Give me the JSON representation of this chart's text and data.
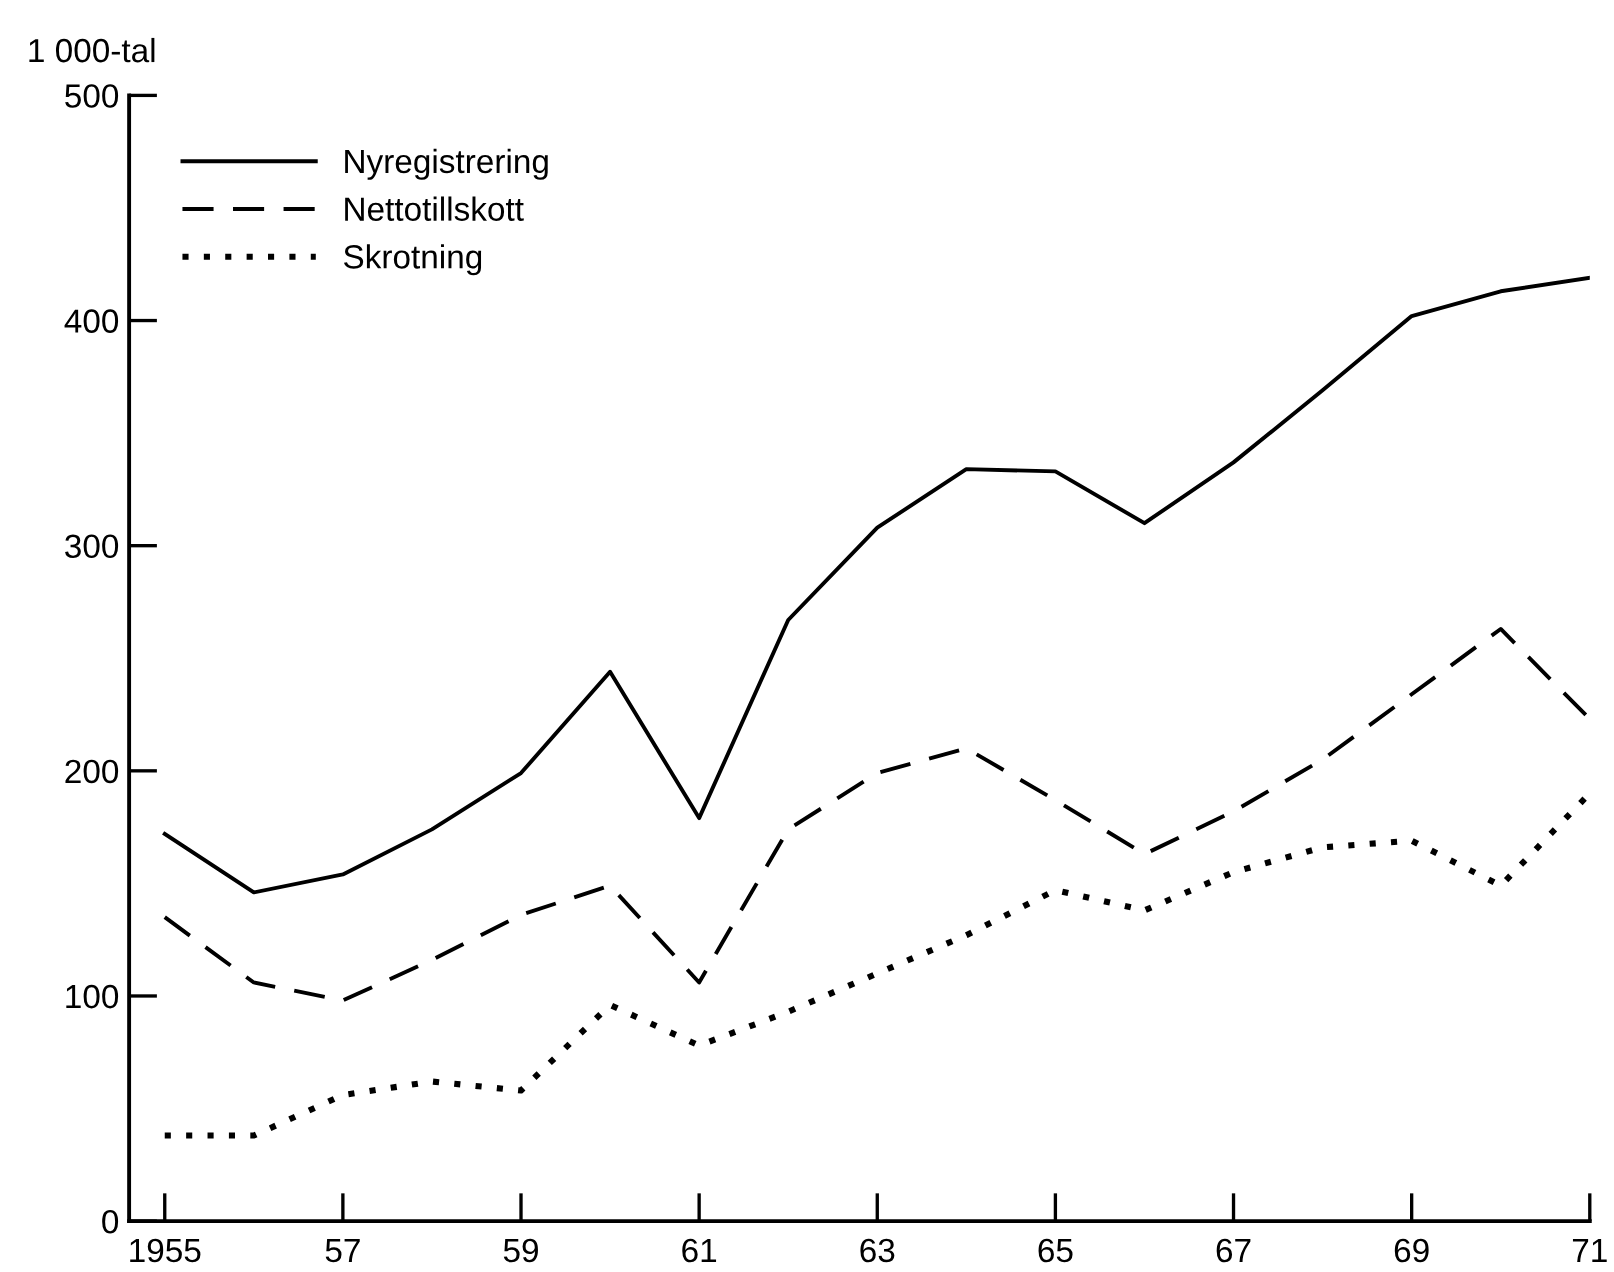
{
  "chart_data": {
    "type": "line",
    "ylabel": "1 000-tal",
    "x": [
      1955,
      1956,
      1957,
      1958,
      1959,
      1960,
      1961,
      1962,
      1963,
      1964,
      1965,
      1966,
      1967,
      1968,
      1969,
      1970,
      1971
    ],
    "series": [
      {
        "name": "Nyregistrering",
        "color": "#000000",
        "line_style": "solid",
        "values": [
          172,
          146,
          154,
          174,
          199,
          244,
          179,
          267,
          308,
          334,
          333,
          310,
          337,
          369,
          402,
          413,
          419
        ]
      },
      {
        "name": "Nettotillskott",
        "color": "#000000",
        "line_style": "dashed",
        "values": [
          135,
          106,
          98,
          116,
          136,
          149,
          106,
          174,
          199,
          210,
          187,
          163,
          182,
          205,
          234,
          263,
          223
        ]
      },
      {
        "name": "Skrotning",
        "color": "#000000",
        "line_style": "dotted",
        "values": [
          38,
          38,
          56,
          62,
          58,
          96,
          78,
          93,
          110,
          127,
          147,
          138,
          155,
          166,
          169,
          149,
          190
        ]
      }
    ],
    "xlim": [
      1954.6,
      1971
    ],
    "ylim": [
      0,
      500
    ],
    "xticks": [
      {
        "value": 1955,
        "label": "1955"
      },
      {
        "value": 1957,
        "label": "57"
      },
      {
        "value": 1959,
        "label": "59"
      },
      {
        "value": 1961,
        "label": "61"
      },
      {
        "value": 1963,
        "label": "63"
      },
      {
        "value": 1965,
        "label": "65"
      },
      {
        "value": 1967,
        "label": "67"
      },
      {
        "value": 1969,
        "label": "69"
      },
      {
        "value": 1971,
        "label": "71"
      }
    ],
    "yticks": [
      0,
      100,
      200,
      300,
      400,
      500
    ],
    "grid": false,
    "legend": "top left",
    "marker": "none"
  }
}
